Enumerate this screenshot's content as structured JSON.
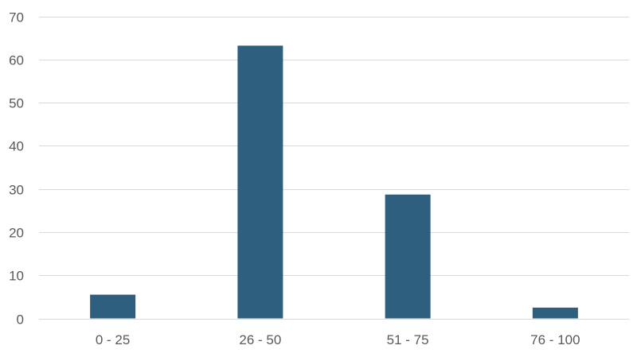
{
  "chart_data": {
    "type": "bar",
    "title": "",
    "xlabel": "",
    "ylabel": "",
    "categories": [
      "0 - 25",
      "26 - 50",
      "51 - 75",
      "76 - 100"
    ],
    "values": [
      5.5,
      63.2,
      28.7,
      2.5
    ],
    "ylim": [
      0,
      70
    ],
    "yticks": [
      0,
      10,
      20,
      30,
      40,
      50,
      60,
      70
    ],
    "grid": true,
    "legend": "none",
    "colors": {
      "bar": "#2e5f7f",
      "grid": "#d9d9d9",
      "text": "#595959"
    }
  }
}
